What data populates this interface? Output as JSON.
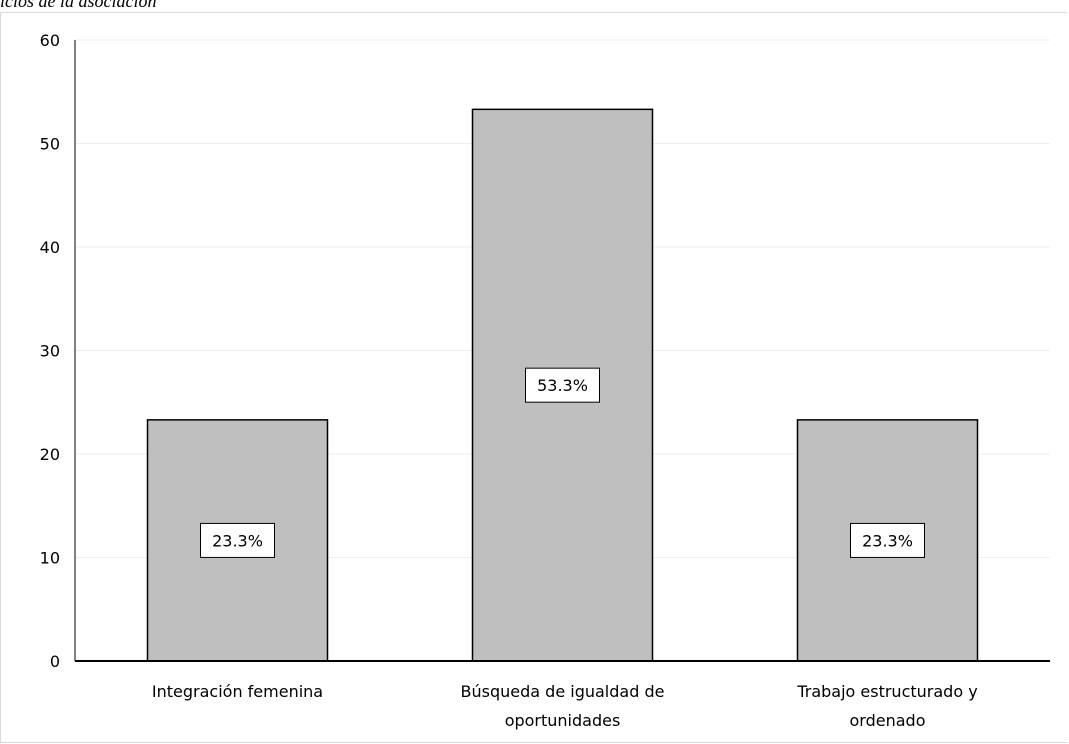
{
  "caption": "icios de la asociación",
  "chart_data": {
    "type": "bar",
    "categories": [
      [
        "Integración femenina"
      ],
      [
        "Búsqueda de igualdad de",
        "oportunidades"
      ],
      [
        "Trabajo estructurado y",
        "ordenado"
      ]
    ],
    "values": [
      23.3,
      53.3,
      23.3
    ],
    "data_labels": [
      "23.3%",
      "53.3%",
      "23.3%"
    ],
    "ylim": [
      0,
      60
    ],
    "yticks": [
      0,
      10,
      20,
      30,
      40,
      50,
      60
    ],
    "grid": true,
    "bar_color": "#bfbfbf",
    "bar_border": "#000000"
  }
}
